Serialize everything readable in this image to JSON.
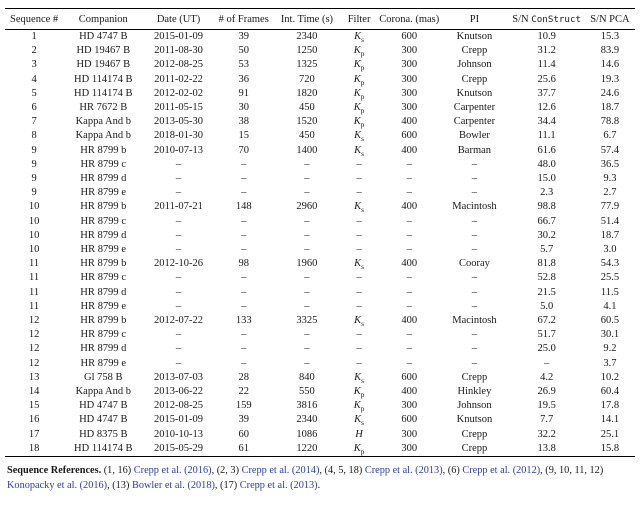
{
  "colors": {
    "link": "#2b3cb5",
    "text": "#1a1a1a",
    "rule": "#000000"
  },
  "table": {
    "columns": [
      {
        "label": "Sequence #"
      },
      {
        "label": "Companion"
      },
      {
        "label": "Date (UT)"
      },
      {
        "label": "# of Frames"
      },
      {
        "label": "Int. Time (s)"
      },
      {
        "label": "Filter"
      },
      {
        "label": "Corona. (mas)"
      },
      {
        "label": "PI"
      },
      {
        "label": "S/N ",
        "mono_suffix": "ConStruct"
      },
      {
        "label": "S/N PCA"
      }
    ],
    "rows": [
      [
        "1",
        "HD 4747 B",
        "2015-01-09",
        "39",
        "2340",
        "K_s",
        "600",
        "Knutson",
        "10.9",
        "15.3"
      ],
      [
        "2",
        "HD 19467 B",
        "2011-08-30",
        "50",
        "1250",
        "K_p",
        "300",
        "Crepp",
        "31.2",
        "83.9"
      ],
      [
        "3",
        "HD 19467 B",
        "2012-08-25",
        "53",
        "1325",
        "K_p",
        "300",
        "Johnson",
        "11.4",
        "14.6"
      ],
      [
        "4",
        "HD 114174 B",
        "2011-02-22",
        "36",
        "720",
        "K_p",
        "300",
        "Crepp",
        "25.6",
        "19.3"
      ],
      [
        "5",
        "HD 114174 B",
        "2012-02-02",
        "91",
        "1820",
        "K_p",
        "300",
        "Knutson",
        "37.7",
        "24.6"
      ],
      [
        "6",
        "HR 7672 B",
        "2011-05-15",
        "30",
        "450",
        "K_p",
        "300",
        "Carpenter",
        "12.6",
        "18.7"
      ],
      [
        "7",
        "Kappa And b",
        "2013-05-30",
        "38",
        "1520",
        "K_p",
        "400",
        "Carpenter",
        "34.4",
        "78.8"
      ],
      [
        "8",
        "Kappa And b",
        "2018-01-30",
        "15",
        "450",
        "K_s",
        "600",
        "Bowler",
        "11.1",
        "6.7"
      ],
      [
        "9",
        "HR 8799 b",
        "2010-07-13",
        "70",
        "1400",
        "K_s",
        "400",
        "Barman",
        "61.6",
        "57.4"
      ],
      [
        "9",
        "HR 8799 c",
        "–",
        "–",
        "–",
        "–",
        "–",
        "–",
        "48.0",
        "36.5"
      ],
      [
        "9",
        "HR 8799 d",
        "–",
        "–",
        "–",
        "–",
        "–",
        "–",
        "15.0",
        "9.3"
      ],
      [
        "9",
        "HR 8799 e",
        "–",
        "–",
        "–",
        "–",
        "–",
        "–",
        "2.3",
        "2.7"
      ],
      [
        "10",
        "HR 8799 b",
        "2011-07-21",
        "148",
        "2960",
        "K_s",
        "400",
        "Macintosh",
        "98.8",
        "77.9"
      ],
      [
        "10",
        "HR 8799 c",
        "–",
        "–",
        "–",
        "–",
        "–",
        "–",
        "66.7",
        "51.4"
      ],
      [
        "10",
        "HR 8799 d",
        "–",
        "–",
        "–",
        "–",
        "–",
        "–",
        "30.2",
        "18.7"
      ],
      [
        "10",
        "HR 8799 e",
        "–",
        "–",
        "–",
        "–",
        "–",
        "–",
        "5.7",
        "3.0"
      ],
      [
        "11",
        "HR 8799 b",
        "2012-10-26",
        "98",
        "1960",
        "K_s",
        "400",
        "Cooray",
        "81.8",
        "54.3"
      ],
      [
        "11",
        "HR 8799 c",
        "–",
        "–",
        "–",
        "–",
        "–",
        "–",
        "52.8",
        "25.5"
      ],
      [
        "11",
        "HR 8799 d",
        "–",
        "–",
        "–",
        "–",
        "–",
        "–",
        "21.5",
        "11.5"
      ],
      [
        "11",
        "HR 8799 e",
        "–",
        "–",
        "–",
        "–",
        "–",
        "–",
        "5.0",
        "4.1"
      ],
      [
        "12",
        "HR 8799 b",
        "2012-07-22",
        "133",
        "3325",
        "K_s",
        "400",
        "Macintosh",
        "67.2",
        "60.5"
      ],
      [
        "12",
        "HR 8799 c",
        "–",
        "–",
        "–",
        "–",
        "–",
        "–",
        "51.7",
        "30.1"
      ],
      [
        "12",
        "HR 8799 d",
        "–",
        "–",
        "–",
        "–",
        "–",
        "–",
        "25.0",
        "9.2"
      ],
      [
        "12",
        "HR 8799 e",
        "–",
        "–",
        "–",
        "–",
        "–",
        "–",
        "–",
        "3.7"
      ],
      [
        "13",
        "Gl 758 B",
        "2013-07-03",
        "28",
        "840",
        "K_s",
        "600",
        "Crepp",
        "4.2",
        "10.2"
      ],
      [
        "14",
        "Kappa And b",
        "2013-06-22",
        "22",
        "550",
        "K_p",
        "400",
        "Hinkley",
        "26.9",
        "60.4"
      ],
      [
        "15",
        "HD 4747 B",
        "2012-08-25",
        "159",
        "3816",
        "K_p",
        "300",
        "Johnson",
        "19.5",
        "17.8"
      ],
      [
        "16",
        "HD 4747 B",
        "2015-01-09",
        "39",
        "2340",
        "K_s",
        "600",
        "Knutson",
        "7.7",
        "14.1"
      ],
      [
        "17",
        "HD 8375 B",
        "2010-10-13",
        "60",
        "1086",
        "H",
        "300",
        "Crepp",
        "32.2",
        "25.1"
      ],
      [
        "18",
        "HD 114174 B",
        "2015-05-29",
        "61",
        "1220",
        "K_p",
        "300",
        "Crepp",
        "13.8",
        "15.8"
      ]
    ]
  },
  "footnote": {
    "label": "Sequence References.",
    "segments": [
      {
        "text": " (1, 16) "
      },
      {
        "link": "Crepp et al. (2016)"
      },
      {
        "text": ", (2, 3) "
      },
      {
        "link": "Crepp et al. (2014)"
      },
      {
        "text": ", (4, 5, 18) "
      },
      {
        "link": "Crepp et al. (2013)"
      },
      {
        "text": ", (6) "
      },
      {
        "link": "Crepp et al. (2012)"
      },
      {
        "text": ", (9, 10, 11, 12) "
      },
      {
        "link": "Konopacky et al. (2016)"
      },
      {
        "text": ", (13) "
      },
      {
        "link": "Bowler et al. (2018)"
      },
      {
        "text": ", (17) "
      },
      {
        "link": "Crepp et al. (2013)"
      },
      {
        "text": "."
      }
    ]
  }
}
